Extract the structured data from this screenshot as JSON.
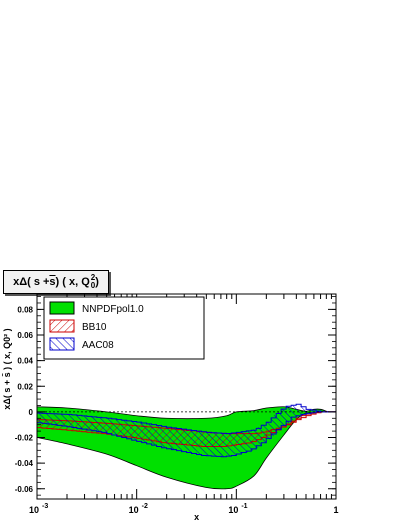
{
  "chart_data": {
    "type": "area",
    "title": "xΔ( s + s̄ ) ( x, Q0² )",
    "title_parts": {
      "main": "xΔ( s + ",
      "sbar": "s",
      "rest": " ) ( x, Q",
      "sub": "0",
      "sup": "2",
      "close": " )"
    },
    "xlabel": "x",
    "ylabel": "xΔ( s + s̄ ) ( x, Q0² )",
    "x_scale": "log",
    "xlim": [
      0.001,
      1
    ],
    "ylim": [
      -0.068,
      0.092
    ],
    "x_tick_labels": [
      {
        "base": "10",
        "exp": "-3",
        "value": 0.001
      },
      {
        "base": "10",
        "exp": "-2",
        "value": 0.01
      },
      {
        "base": "10",
        "exp": "-1",
        "value": 0.1
      },
      {
        "base": "1",
        "exp": "",
        "value": 1
      }
    ],
    "y_ticks": [
      -0.06,
      -0.04,
      -0.02,
      0,
      0.02,
      0.04,
      0.06,
      0.08
    ],
    "y_tick_labels": [
      "-0.06",
      "-0.04",
      "-0.02",
      "0",
      "0.02",
      "0.04",
      "0.06",
      "0.08"
    ],
    "legend_position": "top-left",
    "x": [
      0.001,
      0.002,
      0.005,
      0.01,
      0.02,
      0.05,
      0.08,
      0.1,
      0.15,
      0.2,
      0.3,
      0.4,
      0.5,
      0.6,
      0.7,
      0.85,
      1.0
    ],
    "series": [
      {
        "name": "NNPDFpol1.0",
        "color": "#00e000",
        "edge": "#000000",
        "style": "solid",
        "upper": [
          0.004,
          0.003,
          0.0,
          -0.003,
          -0.005,
          -0.005,
          -0.003,
          0.0,
          0.001,
          0.003,
          0.004,
          0.002,
          0.0005,
          0.002,
          0.002,
          0.0,
          0.0
        ],
        "lower": [
          -0.02,
          -0.025,
          -0.033,
          -0.042,
          -0.051,
          -0.059,
          -0.06,
          -0.058,
          -0.05,
          -0.036,
          -0.018,
          -0.006,
          -0.001,
          -0.001,
          0.0,
          0.0,
          0.0
        ]
      },
      {
        "name": "BB10",
        "color": "#cc0000",
        "style": "hatch",
        "upper": [
          -0.006,
          -0.007,
          -0.009,
          -0.011,
          -0.013,
          -0.016,
          -0.017,
          -0.017,
          -0.017,
          -0.015,
          -0.011,
          -0.006,
          -0.003,
          -0.001,
          0.0,
          0.0,
          0.0
        ],
        "lower": [
          -0.012,
          -0.014,
          -0.017,
          -0.02,
          -0.024,
          -0.027,
          -0.027,
          -0.026,
          -0.024,
          -0.02,
          -0.013,
          -0.007,
          -0.003,
          -0.001,
          0.0,
          0.0,
          0.0
        ]
      },
      {
        "name": "AAC08",
        "color": "#0000cc",
        "style": "hatch",
        "upper": [
          -0.001,
          -0.002,
          -0.005,
          -0.008,
          -0.012,
          -0.016,
          -0.017,
          -0.016,
          -0.014,
          -0.008,
          0.004,
          0.006,
          0.002,
          0.001,
          0.0,
          0.0,
          0.0
        ],
        "lower": [
          -0.008,
          -0.011,
          -0.016,
          -0.022,
          -0.028,
          -0.034,
          -0.035,
          -0.034,
          -0.03,
          -0.024,
          -0.012,
          -0.004,
          -0.002,
          -0.001,
          0.0,
          0.0,
          0.0
        ]
      }
    ]
  }
}
